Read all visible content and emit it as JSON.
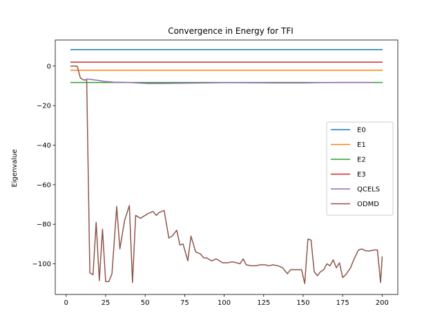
{
  "chart_data": {
    "type": "line",
    "title": "Convergence in Energy for TFI",
    "xlabel": "",
    "ylabel": "Eigenvalue",
    "xlim": [
      -6.9,
      209.9
    ],
    "ylim": [
      -115.5,
      13.2
    ],
    "xticks": [
      0,
      25,
      50,
      75,
      100,
      125,
      150,
      175,
      200
    ],
    "yticks": [
      0,
      -20,
      -40,
      -60,
      -80,
      -100
    ],
    "grid": false,
    "legend_position": "center-right",
    "series": [
      {
        "name": "E0",
        "color": "#1f77b4",
        "x": [
          3,
          200
        ],
        "y": [
          8.3,
          8.3
        ]
      },
      {
        "name": "E1",
        "color": "#ff7f0e",
        "x": [
          3,
          200
        ],
        "y": [
          -2.1,
          -2.1
        ]
      },
      {
        "name": "E2",
        "color": "#2ca02c",
        "x": [
          3,
          200
        ],
        "y": [
          -8.3,
          -8.3
        ]
      },
      {
        "name": "E3",
        "color": "#d62728",
        "x": [
          3,
          200
        ],
        "y": [
          2.0,
          2.0
        ]
      },
      {
        "name": "QCELS",
        "color": "#9467bd",
        "x": [
          13,
          20,
          25,
          30,
          40,
          52,
          60,
          70,
          80,
          100,
          130,
          150,
          160,
          175,
          193
        ],
        "y": [
          -6.5,
          -7.2,
          -7.8,
          -8.1,
          -8.3,
          -8.8,
          -8.8,
          -8.7,
          -8.6,
          -8.4,
          -8.5,
          -8.5,
          -8.4,
          -8.3,
          -8.3
        ]
      },
      {
        "name": "ODMD",
        "color": "#8c564b",
        "x": [
          3,
          5,
          7,
          9,
          11,
          13,
          15,
          17,
          19,
          21,
          23,
          25,
          27,
          29,
          32,
          34,
          37,
          40,
          42,
          44,
          47,
          50,
          52,
          55,
          57,
          59,
          62,
          65,
          67,
          70,
          72,
          74,
          77,
          79,
          82,
          85,
          87,
          89,
          92,
          95,
          97,
          99,
          102,
          105,
          108,
          110,
          112,
          114,
          117,
          120,
          123,
          126,
          128,
          131,
          134,
          137,
          140,
          142,
          144,
          147,
          149,
          151,
          153,
          155,
          157,
          159,
          161,
          163,
          165,
          167,
          169,
          171,
          173,
          175,
          177,
          180,
          182,
          185,
          187,
          190,
          192,
          195,
          197,
          199,
          200
        ],
        "y": [
          0,
          0,
          0,
          -6,
          -7,
          -7,
          -104.5,
          -105.5,
          -79,
          -108.5,
          -82.5,
          -109,
          -109,
          -105,
          -71,
          -92.5,
          -78,
          -70.5,
          -109.5,
          -75.5,
          -77,
          -75.5,
          -74.5,
          -73.5,
          -75.5,
          -74,
          -73,
          -87,
          -86,
          -83,
          -90.5,
          -90,
          -98.5,
          -86,
          -94,
          -95,
          -97,
          -97,
          -98.5,
          -97.5,
          -98.5,
          -99.5,
          -99.5,
          -99,
          -99.5,
          -100,
          -97.5,
          -100.5,
          -101,
          -101,
          -100.5,
          -100.5,
          -101,
          -100.5,
          -101,
          -102,
          -105,
          -103,
          -103,
          -103,
          -103,
          -110,
          -87.5,
          -88,
          -104,
          -106,
          -104,
          -103,
          -100,
          -101,
          -98,
          -102,
          -99.5,
          -107,
          -105.5,
          -102,
          -98,
          -93,
          -92.5,
          -93.5,
          -93.5,
          -93,
          -93,
          -109.5,
          -96.5
        ]
      }
    ]
  }
}
